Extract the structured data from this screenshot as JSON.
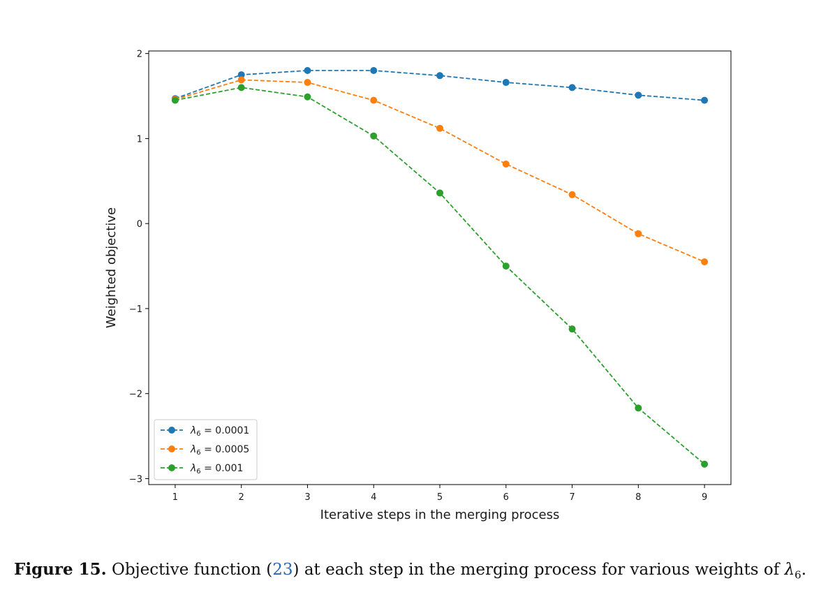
{
  "chart_data": {
    "type": "line",
    "x": [
      1,
      2,
      3,
      4,
      5,
      6,
      7,
      8,
      9
    ],
    "xlim": [
      0.6,
      9.4
    ],
    "ylim": [
      -3.07,
      2.03
    ],
    "xticks": [
      1,
      2,
      3,
      4,
      5,
      6,
      7,
      8,
      9
    ],
    "yticks": [
      -3,
      -2,
      -1,
      0,
      1,
      2
    ],
    "ytick_labels": [
      "−3",
      "−2",
      "−1",
      "0",
      "1",
      "2"
    ],
    "xlabel": "Iterative steps in the merging process",
    "ylabel": "Weighted objective",
    "legend_position": "lower-left",
    "grid": false,
    "series": [
      {
        "symbol": "λ",
        "subscript": "6",
        "value_text": " = 0.0001",
        "color": "#1f77b4",
        "values": [
          1.47,
          1.75,
          1.8,
          1.8,
          1.74,
          1.66,
          1.6,
          1.51,
          1.45
        ]
      },
      {
        "symbol": "λ",
        "subscript": "6",
        "value_text": " = 0.0005",
        "color": "#ff7f0e",
        "values": [
          1.46,
          1.69,
          1.66,
          1.45,
          1.12,
          0.7,
          0.34,
          -0.12,
          -0.45
        ]
      },
      {
        "symbol": "λ",
        "subscript": "6",
        "value_text": " = 0.001",
        "color": "#2ca02c",
        "values": [
          1.45,
          1.6,
          1.49,
          1.03,
          0.36,
          -0.5,
          -1.24,
          -2.17,
          -2.83
        ]
      }
    ]
  },
  "caption": {
    "label": "Figure 15.",
    "text_before": " Objective function (",
    "eq_ref": "23",
    "text_after": ") at each step in the merging process for various weights of ",
    "symbol": "λ",
    "subscript": "6",
    "end": "."
  }
}
